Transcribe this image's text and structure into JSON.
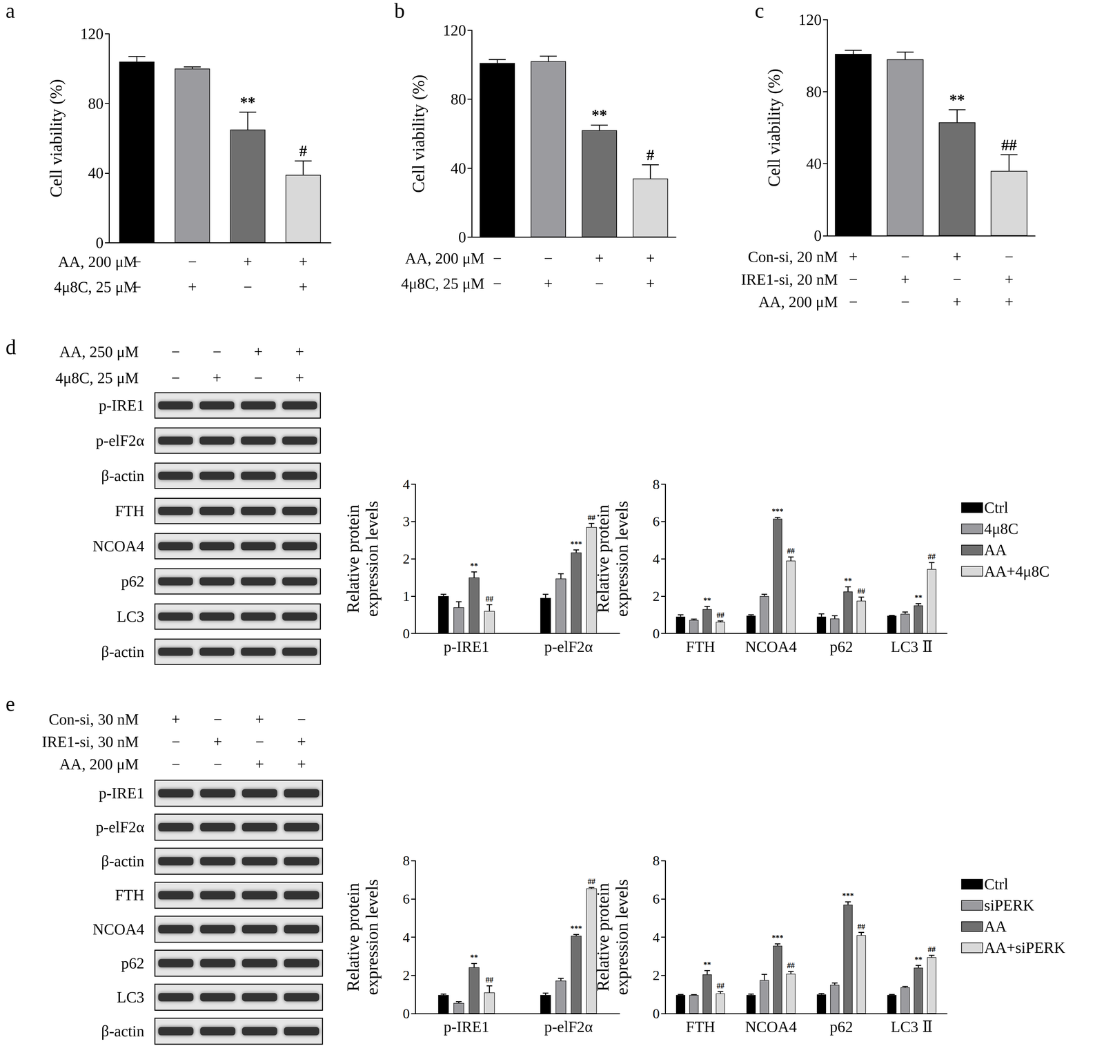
{
  "chart_data": [
    {
      "type": "bar",
      "title": "a",
      "y_label": "Cell viability (%)",
      "annotations": [
        "AA, 200 μM",
        "4μ8C, 25 μM"
      ],
      "categories": [
        "−\n−",
        "−\n+",
        "+\n−",
        "+\n+"
      ],
      "values": [
        104,
        100,
        65,
        39
      ],
      "errors": [
        3,
        1,
        10,
        8
      ],
      "significance": [
        null,
        null,
        "**",
        "#"
      ],
      "colors": [
        "#000000",
        "#9b9b9f",
        "#6f6f6f",
        "#d9d9d9"
      ],
      "ylim": [
        0,
        120
      ],
      "yticks": [
        0,
        40,
        80,
        120
      ],
      "grid": false
    },
    {
      "type": "bar",
      "title": "b",
      "y_label": "Cell viability (%)",
      "annotations": [
        "AA, 200 μM",
        "4μ8C, 25 μM"
      ],
      "categories": [
        "−\n−",
        "−\n+",
        "+\n−",
        "+\n+"
      ],
      "values": [
        101,
        102,
        62,
        34
      ],
      "errors": [
        2,
        3,
        3,
        8
      ],
      "significance": [
        null,
        null,
        "**",
        "#"
      ],
      "colors": [
        "#000000",
        "#9b9b9f",
        "#6f6f6f",
        "#d9d9d9"
      ],
      "ylim": [
        0,
        120
      ],
      "yticks": [
        0,
        40,
        80,
        120
      ],
      "grid": false
    },
    {
      "type": "bar",
      "title": "c",
      "y_label": "Cell viability (%)",
      "annotations": [
        "Con-si, 20 nM",
        "IRE1-si, 20 nM",
        "AA, 200 μM"
      ],
      "categories": [
        "+\n−\n−",
        "−\n+\n−",
        "+\n−\n+",
        "−\n+\n+"
      ],
      "values": [
        101,
        98,
        63,
        36
      ],
      "errors": [
        2,
        4,
        7,
        9
      ],
      "significance": [
        null,
        null,
        "**",
        "##"
      ],
      "colors": [
        "#000000",
        "#9b9b9f",
        "#6f6f6f",
        "#d9d9d9"
      ],
      "ylim": [
        0,
        120
      ],
      "yticks": [
        0,
        40,
        80,
        120
      ],
      "grid": false
    },
    {
      "type": "bar",
      "y_label": "Relative protein\nexpression levels",
      "categories": [
        "p-IRE1",
        "p-elF2α"
      ],
      "series": [
        {
          "color": "#000000",
          "values": [
            1.0,
            0.95
          ],
          "errors": [
            0.05,
            0.1
          ],
          "significance": [
            null,
            null
          ]
        },
        {
          "color": "#9b9b9f",
          "values": [
            0.7,
            1.47
          ],
          "errors": [
            0.15,
            0.13
          ],
          "significance": [
            null,
            null
          ]
        },
        {
          "color": "#6f6f6f",
          "values": [
            1.5,
            2.17
          ],
          "errors": [
            0.15,
            0.07
          ],
          "significance": [
            "**",
            "***"
          ]
        },
        {
          "color": "#d9d9d9",
          "values": [
            0.6,
            2.85
          ],
          "errors": [
            0.17,
            0.1
          ],
          "significance": [
            "##",
            "##"
          ]
        }
      ],
      "ylim": [
        0,
        4
      ],
      "yticks": [
        0,
        1,
        2,
        3,
        4
      ],
      "grid": false
    },
    {
      "type": "bar",
      "y_label": "Relative protein\nexpression levels",
      "categories": [
        "FTH",
        "NCOA4",
        "p62",
        "LC3 Ⅱ"
      ],
      "series": [
        {
          "name": "Ctrl",
          "color": "#000000",
          "values": [
            0.9,
            0.95,
            0.9,
            0.95
          ],
          "errors": [
            0.1,
            0.05,
            0.15,
            0.02
          ],
          "significance": [
            null,
            null,
            null,
            null
          ]
        },
        {
          "name": "4μ8C",
          "color": "#9b9b9f",
          "values": [
            0.72,
            2.0,
            0.8,
            1.05
          ],
          "errors": [
            0.05,
            0.1,
            0.15,
            0.1
          ],
          "significance": [
            null,
            null,
            null,
            null
          ]
        },
        {
          "name": "AA",
          "color": "#6f6f6f",
          "values": [
            1.3,
            6.15,
            2.25,
            1.5
          ],
          "errors": [
            0.15,
            0.07,
            0.25,
            0.1
          ],
          "significance": [
            "**",
            "***",
            "**",
            "**"
          ]
        },
        {
          "name": "AA+4μ8C",
          "color": "#d9d9d9",
          "values": [
            0.62,
            3.9,
            1.75,
            3.45
          ],
          "errors": [
            0.05,
            0.2,
            0.2,
            0.35
          ],
          "significance": [
            "##",
            "##",
            "##",
            "##"
          ]
        }
      ],
      "ylim": [
        0,
        8
      ],
      "yticks": [
        0,
        2,
        4,
        6,
        8
      ],
      "grid": false,
      "legend": "right"
    },
    {
      "type": "bar",
      "y_label": "Relative protein\nexpression levels",
      "categories": [
        "p-IRE1",
        "p-elF2α"
      ],
      "series": [
        {
          "color": "#000000",
          "values": [
            0.97,
            0.97
          ],
          "errors": [
            0.05,
            0.1
          ],
          "significance": [
            null,
            null
          ]
        },
        {
          "color": "#9b9b9f",
          "values": [
            0.55,
            1.72
          ],
          "errors": [
            0.07,
            0.12
          ],
          "significance": [
            null,
            null
          ]
        },
        {
          "color": "#6f6f6f",
          "values": [
            2.42,
            4.07
          ],
          "errors": [
            0.2,
            0.07
          ],
          "significance": [
            "**",
            "***"
          ]
        },
        {
          "color": "#d9d9d9",
          "values": [
            1.1,
            6.55
          ],
          "errors": [
            0.35,
            0.05
          ],
          "significance": [
            "##",
            "##"
          ]
        }
      ],
      "ylim": [
        0,
        8
      ],
      "yticks": [
        0,
        2,
        4,
        6,
        8
      ],
      "grid": false
    },
    {
      "type": "bar",
      "y_label": "Relative protein\nexpression levels",
      "categories": [
        "FTH",
        "NCOA4",
        "p62",
        "LC3 Ⅱ"
      ],
      "series": [
        {
          "name": "Ctrl",
          "color": "#000000",
          "values": [
            0.97,
            0.97,
            1.0,
            0.97
          ],
          "errors": [
            0.03,
            0.05,
            0.05,
            0.03
          ],
          "significance": [
            null,
            null,
            null,
            null
          ]
        },
        {
          "name": "siPERK",
          "color": "#9b9b9f",
          "values": [
            0.97,
            1.75,
            1.5,
            1.37
          ],
          "errors": [
            0.02,
            0.3,
            0.1,
            0.05
          ],
          "significance": [
            null,
            null,
            null,
            null
          ]
        },
        {
          "name": "AA",
          "color": "#6f6f6f",
          "values": [
            2.05,
            3.55,
            5.7,
            2.4
          ],
          "errors": [
            0.2,
            0.1,
            0.15,
            0.12
          ],
          "significance": [
            "**",
            "***",
            "***",
            "**"
          ]
        },
        {
          "name": "AA+siPERK",
          "color": "#d9d9d9",
          "values": [
            1.05,
            2.08,
            4.1,
            2.95
          ],
          "errors": [
            0.1,
            0.12,
            0.15,
            0.1
          ],
          "significance": [
            "##",
            "##",
            "##",
            "##"
          ]
        }
      ],
      "ylim": [
        0,
        8
      ],
      "yticks": [
        0,
        2,
        4,
        6,
        8
      ],
      "grid": false,
      "legend": "right"
    }
  ],
  "blots": [
    {
      "panel": "d",
      "conditions": [
        {
          "label": "AA, 250 μM",
          "signs": [
            "−",
            "−",
            "+",
            "+"
          ]
        },
        {
          "label": "4μ8C, 25 μM",
          "signs": [
            "−",
            "+",
            "−",
            "+"
          ]
        }
      ],
      "rows": [
        "p-IRE1",
        "p-elF2α",
        "β-actin",
        "FTH",
        "NCOA4",
        "p62",
        "LC3",
        "β-actin"
      ]
    },
    {
      "panel": "e",
      "conditions": [
        {
          "label": "Con-si, 30 nM",
          "signs": [
            "+",
            "−",
            "+",
            "−"
          ]
        },
        {
          "label": "IRE1-si, 30 nM",
          "signs": [
            "−",
            "+",
            "−",
            "+"
          ]
        },
        {
          "label": "AA, 200 μM",
          "signs": [
            "−",
            "−",
            "+",
            "+"
          ]
        }
      ],
      "rows": [
        "p-IRE1",
        "p-elF2α",
        "β-actin",
        "FTH",
        "NCOA4",
        "p62",
        "LC3",
        "β-actin"
      ]
    }
  ]
}
